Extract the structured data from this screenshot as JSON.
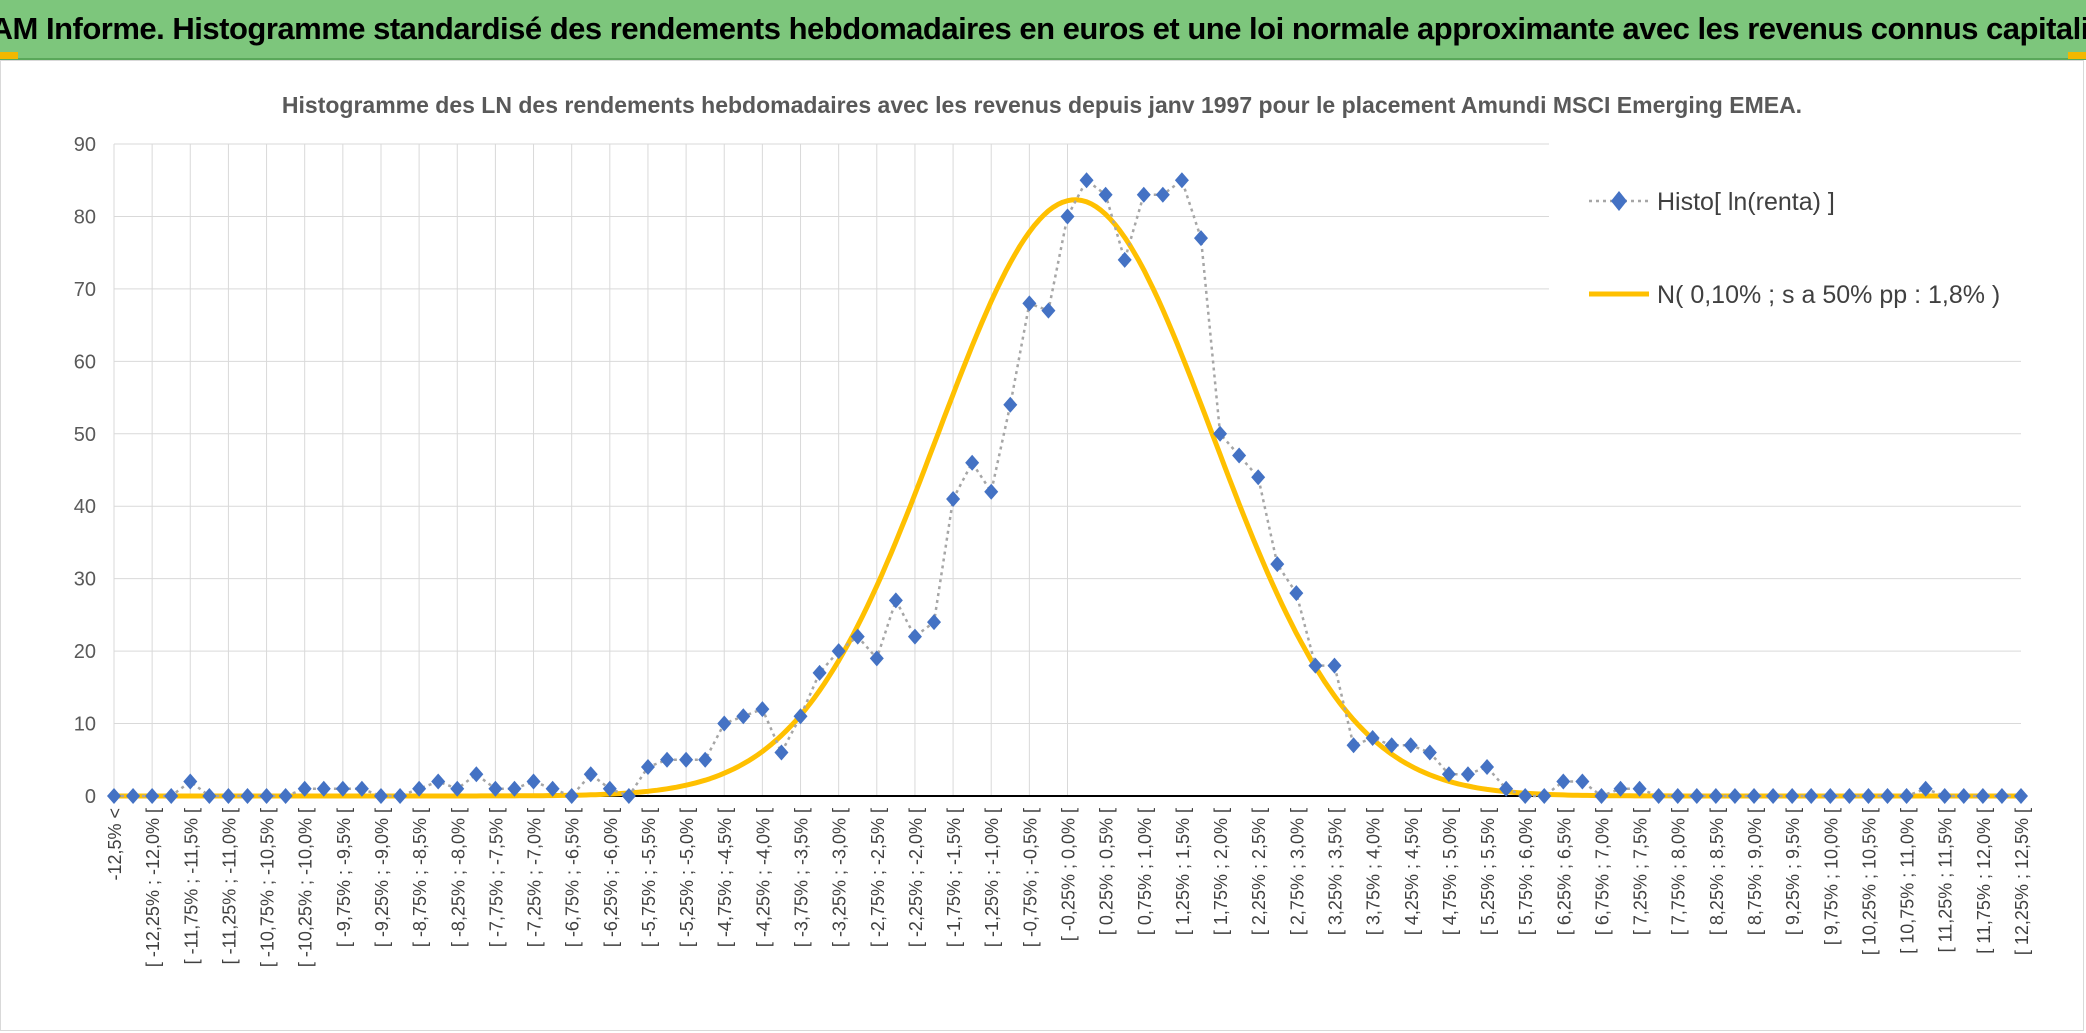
{
  "banner": {
    "title": "ADAM Informe. Histogramme standardisé des rendements hebdomadaires en euros et une loi normale approximante avec les revenus connus capitalisés"
  },
  "colors": {
    "banner_bg": "#7dc67c",
    "corner_accent": "#f2b800",
    "histo_marker": "#4472c4",
    "histo_line": "#a6a6a6",
    "normal_curve": "#ffc000",
    "grid": "#d9d9d9"
  },
  "chart_data": {
    "type": "line",
    "title": "Histogramme des LN des rendements hebdomadaires avec les revenus depuis janv 1997 pour le placement Amundi MSCI Emerging EMEA.",
    "xlabel": "",
    "ylabel": "",
    "ylim": [
      0,
      90
    ],
    "yticks": [
      0,
      10,
      20,
      30,
      40,
      50,
      60,
      70,
      80,
      90
    ],
    "grid": true,
    "legend_position": "top-right",
    "categories": [
      "-12,5% <",
      "[ -12,25% ; -12,0% [",
      "[ -11,75% ; -11,5% [",
      "[ -11,25% ; -11,0% [",
      "[ -10,75% ; -10,5% [",
      "[ -10,25% ; -10,0% [",
      "[ -9,75% ; -9,5% [",
      "[ -9,25% ; -9,0% [",
      "[ -8,75% ; -8,5% [",
      "[ -8,25% ; -8,0% [",
      "[ -7,75% ; -7,5% [",
      "[ -7,25% ; -7,0% [",
      "[ -6,75% ; -6,5% [",
      "[ -6,25% ; -6,0% [",
      "[ -5,75% ; -5,5% [",
      "[ -5,25% ; -5,0% [",
      "[ -4,75% ; -4,5% [",
      "[ -4,25% ; -4,0% [",
      "[ -3,75% ; -3,5% [",
      "[ -3,25% ; -3,0% [",
      "[ -2,75% ; -2,5% [",
      "[ -2,25% ; -2,0% [",
      "[ -1,75% ; -1,5% [",
      "[ -1,25% ; -1,0% [",
      "[ -0,75% ; -0,5% [",
      "[ -0,25% ; 0,0% [",
      "[ 0,25% ; 0,5% [",
      "[ 0,75% ; 1,0% [",
      "[ 1,25% ; 1,5% [",
      "[ 1,75% ; 2,0% [",
      "[ 2,25% ; 2,5% [",
      "[ 2,75% ; 3,0% [",
      "[ 3,25% ; 3,5% [",
      "[ 3,75% ; 4,0% [",
      "[ 4,25% ; 4,5% [",
      "[ 4,75% ; 5,0% [",
      "[ 5,25% ; 5,5% [",
      "[ 5,75% ; 6,0% [",
      "[ 6,25% ; 6,5% [",
      "[ 6,75% ; 7,0% [",
      "[ 7,25% ; 7,5% [",
      "[ 7,75% ; 8,0% [",
      "[ 8,25% ; 8,5% [",
      "[ 8,75% ; 9,0% [",
      "[ 9,25% ; 9,5% [",
      "[ 9,75% ; 10,0% [",
      "[ 10,25% ; 10,5% [",
      "[ 10,75% ; 11,0% [",
      "[ 11,25% ; 11,5% [",
      "[ 11,75% ; 12,0% [",
      "[ 12,25% ; 12,5% ["
    ],
    "x": [
      -12.5,
      -12.25,
      -12.0,
      -11.75,
      -11.5,
      -11.25,
      -11.0,
      -10.75,
      -10.5,
      -10.25,
      -10.0,
      -9.75,
      -9.5,
      -9.25,
      -9.0,
      -8.75,
      -8.5,
      -8.25,
      -8.0,
      -7.75,
      -7.5,
      -7.25,
      -7.0,
      -6.75,
      -6.5,
      -6.25,
      -6.0,
      -5.75,
      -5.5,
      -5.25,
      -5.0,
      -4.75,
      -4.5,
      -4.25,
      -4.0,
      -3.75,
      -3.5,
      -3.25,
      -3.0,
      -2.75,
      -2.5,
      -2.25,
      -2.0,
      -1.75,
      -1.5,
      -1.25,
      -1.0,
      -0.75,
      -0.5,
      -0.25,
      0.0,
      0.25,
      0.5,
      0.75,
      1.0,
      1.25,
      1.5,
      1.75,
      2.0,
      2.25,
      2.5,
      2.75,
      3.0,
      3.25,
      3.5,
      3.75,
      4.0,
      4.25,
      4.5,
      4.75,
      5.0,
      5.25,
      5.5,
      5.75,
      6.0,
      6.25,
      6.5,
      6.75,
      7.0,
      7.25,
      7.5,
      7.75,
      8.0,
      8.25,
      8.5,
      8.75,
      9.0,
      9.25,
      9.5,
      9.75,
      10.0,
      10.25,
      10.5,
      10.75,
      11.0,
      11.25,
      11.5,
      11.75,
      12.0,
      12.25,
      12.5
    ],
    "series": [
      {
        "name": "Histo[ ln(renta) ]",
        "style": "dotted-line-diamond-markers",
        "color": "#4472c4",
        "values": [
          0,
          0,
          0,
          0,
          2,
          0,
          0,
          0,
          0,
          0,
          1,
          1,
          1,
          1,
          0,
          0,
          1,
          2,
          1,
          3,
          1,
          1,
          2,
          1,
          0,
          3,
          1,
          0,
          4,
          5,
          5,
          5,
          10,
          11,
          12,
          6,
          11,
          17,
          20,
          22,
          19,
          27,
          22,
          24,
          41,
          46,
          42,
          54,
          68,
          67,
          80,
          85,
          83,
          74,
          83,
          83,
          85,
          77,
          50,
          47,
          44,
          32,
          28,
          18,
          18,
          7,
          8,
          7,
          7,
          6,
          3,
          3,
          4,
          1,
          0,
          0,
          2,
          2,
          0,
          1,
          1,
          0,
          0,
          0,
          0,
          0,
          0,
          0,
          0,
          0,
          0,
          0,
          0,
          0,
          0,
          1,
          0,
          0,
          0,
          0,
          0
        ]
      },
      {
        "name": "N( 0,10% ; s a 50% pp : 1,8% )",
        "style": "solid-thick",
        "color": "#ffc000",
        "mean": 0.1,
        "sd": 1.8,
        "peak": 82.3
      }
    ]
  }
}
